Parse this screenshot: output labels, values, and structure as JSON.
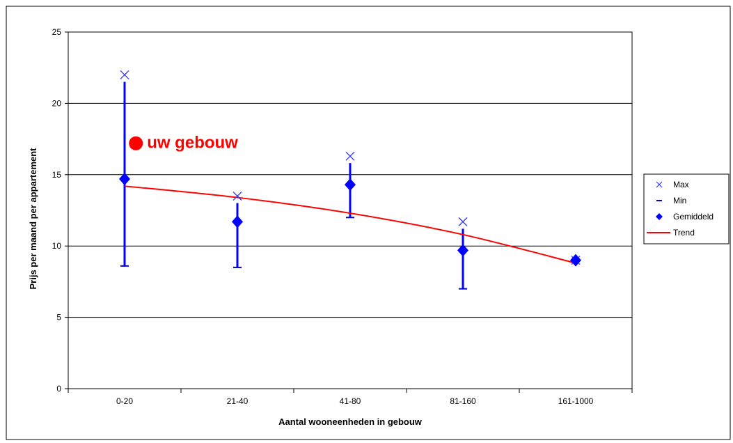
{
  "chart_data": {
    "type": "scatter",
    "title": "",
    "xlabel": "Aantal wooneenheden in gebouw",
    "ylabel": "Prijs per maand per appartement",
    "categories": [
      "0-20",
      "21-40",
      "41-80",
      "81-160",
      "161-1000"
    ],
    "ylim": [
      0,
      25
    ],
    "yticks": [
      0,
      5,
      10,
      15,
      20,
      25
    ],
    "grid": "horizontal",
    "legend_position": "right",
    "series": [
      {
        "name": "Max",
        "marker": "x",
        "color": "#3333ff",
        "values": [
          22.0,
          13.5,
          16.3,
          11.7,
          9.0
        ]
      },
      {
        "name": "Min",
        "marker": "dash",
        "color": "#0000cc",
        "values": [
          8.6,
          8.5,
          12.0,
          7.0,
          9.0
        ]
      },
      {
        "name": "Gemiddeld",
        "marker": "diamond",
        "color": "#0000ff",
        "values": [
          14.7,
          11.7,
          14.3,
          9.7,
          9.0
        ]
      },
      {
        "name": "Trend",
        "marker": "line",
        "color": "#ff0000",
        "values": [
          14.2,
          13.4,
          12.3,
          10.8,
          8.8
        ]
      }
    ],
    "annotation": {
      "text": "uw gebouw",
      "x_position": 0.6,
      "y": 17.2,
      "color": "#ff0000"
    }
  }
}
